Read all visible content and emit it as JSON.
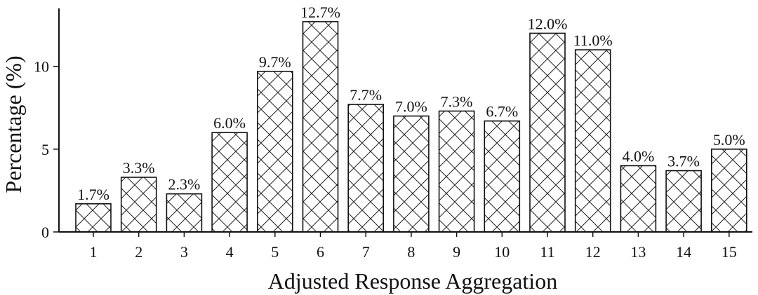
{
  "chart_data": {
    "type": "bar",
    "title": "",
    "xlabel": "Adjusted Response Aggregation",
    "ylabel": "Percentage (%)",
    "categories": [
      "1",
      "2",
      "3",
      "4",
      "5",
      "6",
      "7",
      "8",
      "9",
      "10",
      "11",
      "12",
      "13",
      "14",
      "15"
    ],
    "values": [
      1.7,
      3.3,
      2.3,
      6.0,
      9.7,
      12.7,
      7.7,
      7.0,
      7.3,
      6.7,
      12.0,
      11.0,
      4.0,
      3.7,
      5.0
    ],
    "value_labels": [
      "1.7%",
      "3.3%",
      "2.3%",
      "6.0%",
      "9.7%",
      "12.7%",
      "7.7%",
      "7.0%",
      "7.3%",
      "6.7%",
      "12.0%",
      "11.0%",
      "4.0%",
      "3.7%",
      "5.0%"
    ],
    "ylim": [
      0,
      13.5
    ],
    "yticks": [
      0,
      5,
      10
    ],
    "grid": false,
    "legend": "none",
    "bar_fill": "#ffffff",
    "bar_edge": "#111111",
    "hatch": "crosshatch"
  }
}
